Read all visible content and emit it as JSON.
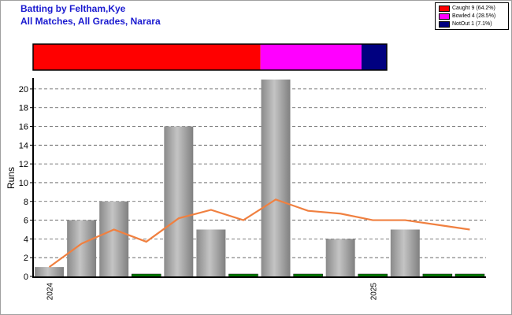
{
  "header": {
    "title_line1": "Batting by Feltham,Kye",
    "title_line2": "All Matches, All Grades, Narara"
  },
  "legend": {
    "items": [
      {
        "label": "Caught 9 (64.2%)",
        "color": "#ff0000"
      },
      {
        "label": "Bowled 4 (28.5%)",
        "color": "#ff00ff"
      },
      {
        "label": "NotOut 1 (7.1%)",
        "color": "#000080"
      }
    ]
  },
  "chart_data": [
    {
      "type": "bar",
      "subtype": "stacked-horizontal-share",
      "segments": [
        {
          "label": "Caught",
          "count": 9,
          "percent": 64.2,
          "color": "#ff0000"
        },
        {
          "label": "Bowled",
          "count": 4,
          "percent": 28.5,
          "color": "#ff00ff"
        },
        {
          "label": "NotOut",
          "count": 1,
          "percent": 7.1,
          "color": "#000080"
        }
      ]
    },
    {
      "type": "bar",
      "ylabel": "Runs",
      "ylim": [
        0,
        21
      ],
      "yticks": [
        0,
        2,
        4,
        6,
        8,
        10,
        12,
        14,
        16,
        18,
        20
      ],
      "grid": true,
      "x_labels": [
        {
          "index": 0,
          "text": "2024"
        },
        {
          "index": 10,
          "text": "2025"
        }
      ],
      "bars": [
        1,
        6,
        8,
        0,
        16,
        5,
        0,
        21,
        0,
        4,
        0,
        5,
        0,
        0
      ],
      "series": [
        {
          "kind": "line",
          "color": "#f08040",
          "values": [
            1,
            3.5,
            5,
            3.7,
            6.2,
            7.1,
            6,
            8.2,
            7,
            6.7,
            6,
            6,
            5.5,
            5
          ]
        }
      ],
      "bar_color": "#a8a8a8",
      "zero_marker_color": "#008000"
    }
  ]
}
